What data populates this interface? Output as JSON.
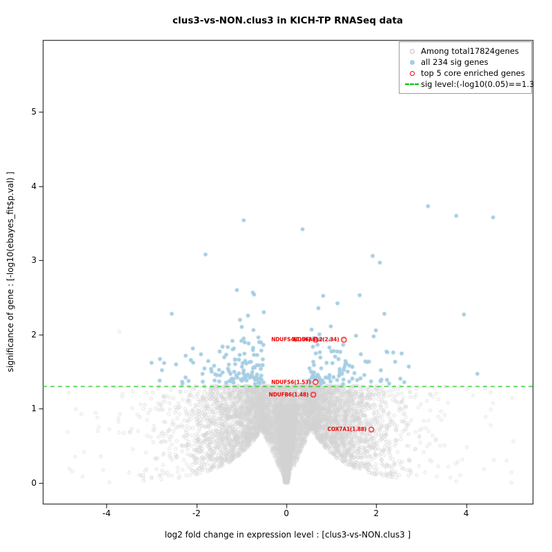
{
  "chart_data": {
    "type": "scatter",
    "variant": "volcano",
    "title": "clus3-vs-NON.clus3 in KICH-TP RNASeq data",
    "xlabel": "log2 fold change in expression level : [clus3-vs-NON.clus3 ]",
    "ylabel": "significance of gene : [-log10(ebayes_fit$p.val) ]",
    "xlim": [
      -5.42,
      5.48
    ],
    "ylim": [
      -0.28,
      5.97
    ],
    "xticks": [
      -4,
      -2,
      0,
      2,
      4
    ],
    "yticks": [
      0,
      1,
      2,
      3,
      4,
      5
    ],
    "grid": false,
    "sig_level": 1.3,
    "total_genes": 17824,
    "sig_gene_count": 234,
    "series": [
      {
        "name": "Among total17824genes",
        "role": "background",
        "count": 17824,
        "marker": "open-circle",
        "color": "#d3d3d3"
      },
      {
        "name": "all 234 sig genes",
        "role": "significant",
        "count": 234,
        "marker": "filled-circle",
        "color": "#a6cee3"
      },
      {
        "name": "top 5 core enriched genes",
        "role": "core-enriched",
        "count": 5,
        "marker": "open-circle",
        "color": "#ff0000",
        "points": [
          {
            "label": "NDUFS4(1.56)",
            "x": 0.65,
            "y": 1.93
          },
          {
            "label": "NDUFA4L2(2.34)",
            "x": 1.28,
            "y": 1.93
          },
          {
            "label": "NDUFS6(1.53)",
            "x": 0.65,
            "y": 1.36
          },
          {
            "label": "NDUFB6(1.48)",
            "x": 0.6,
            "y": 1.19
          },
          {
            "label": "COX7A1(1.88)",
            "x": 1.89,
            "y": 0.72
          }
        ]
      }
    ],
    "legend": {
      "position": "top-right",
      "items": [
        {
          "label": "Among total17824genes",
          "symbol": "open-circle",
          "color": "#bdbdbd"
        },
        {
          "label": "all 234 sig genes",
          "symbol": "filled-circle",
          "color": "#a6cee3"
        },
        {
          "label": "top 5 core enriched genes",
          "symbol": "open-circle",
          "color": "#ff0000"
        },
        {
          "label": "sig level:(-log10(0.05)==1.3",
          "symbol": "dashed-line",
          "color": "#00c000"
        }
      ]
    },
    "colors": {
      "background_points": "#d2d2d2",
      "sig_points": "#a6cee3",
      "core_points": "#ff0000",
      "sig_line": "#00c800",
      "axis": "#000000"
    }
  }
}
